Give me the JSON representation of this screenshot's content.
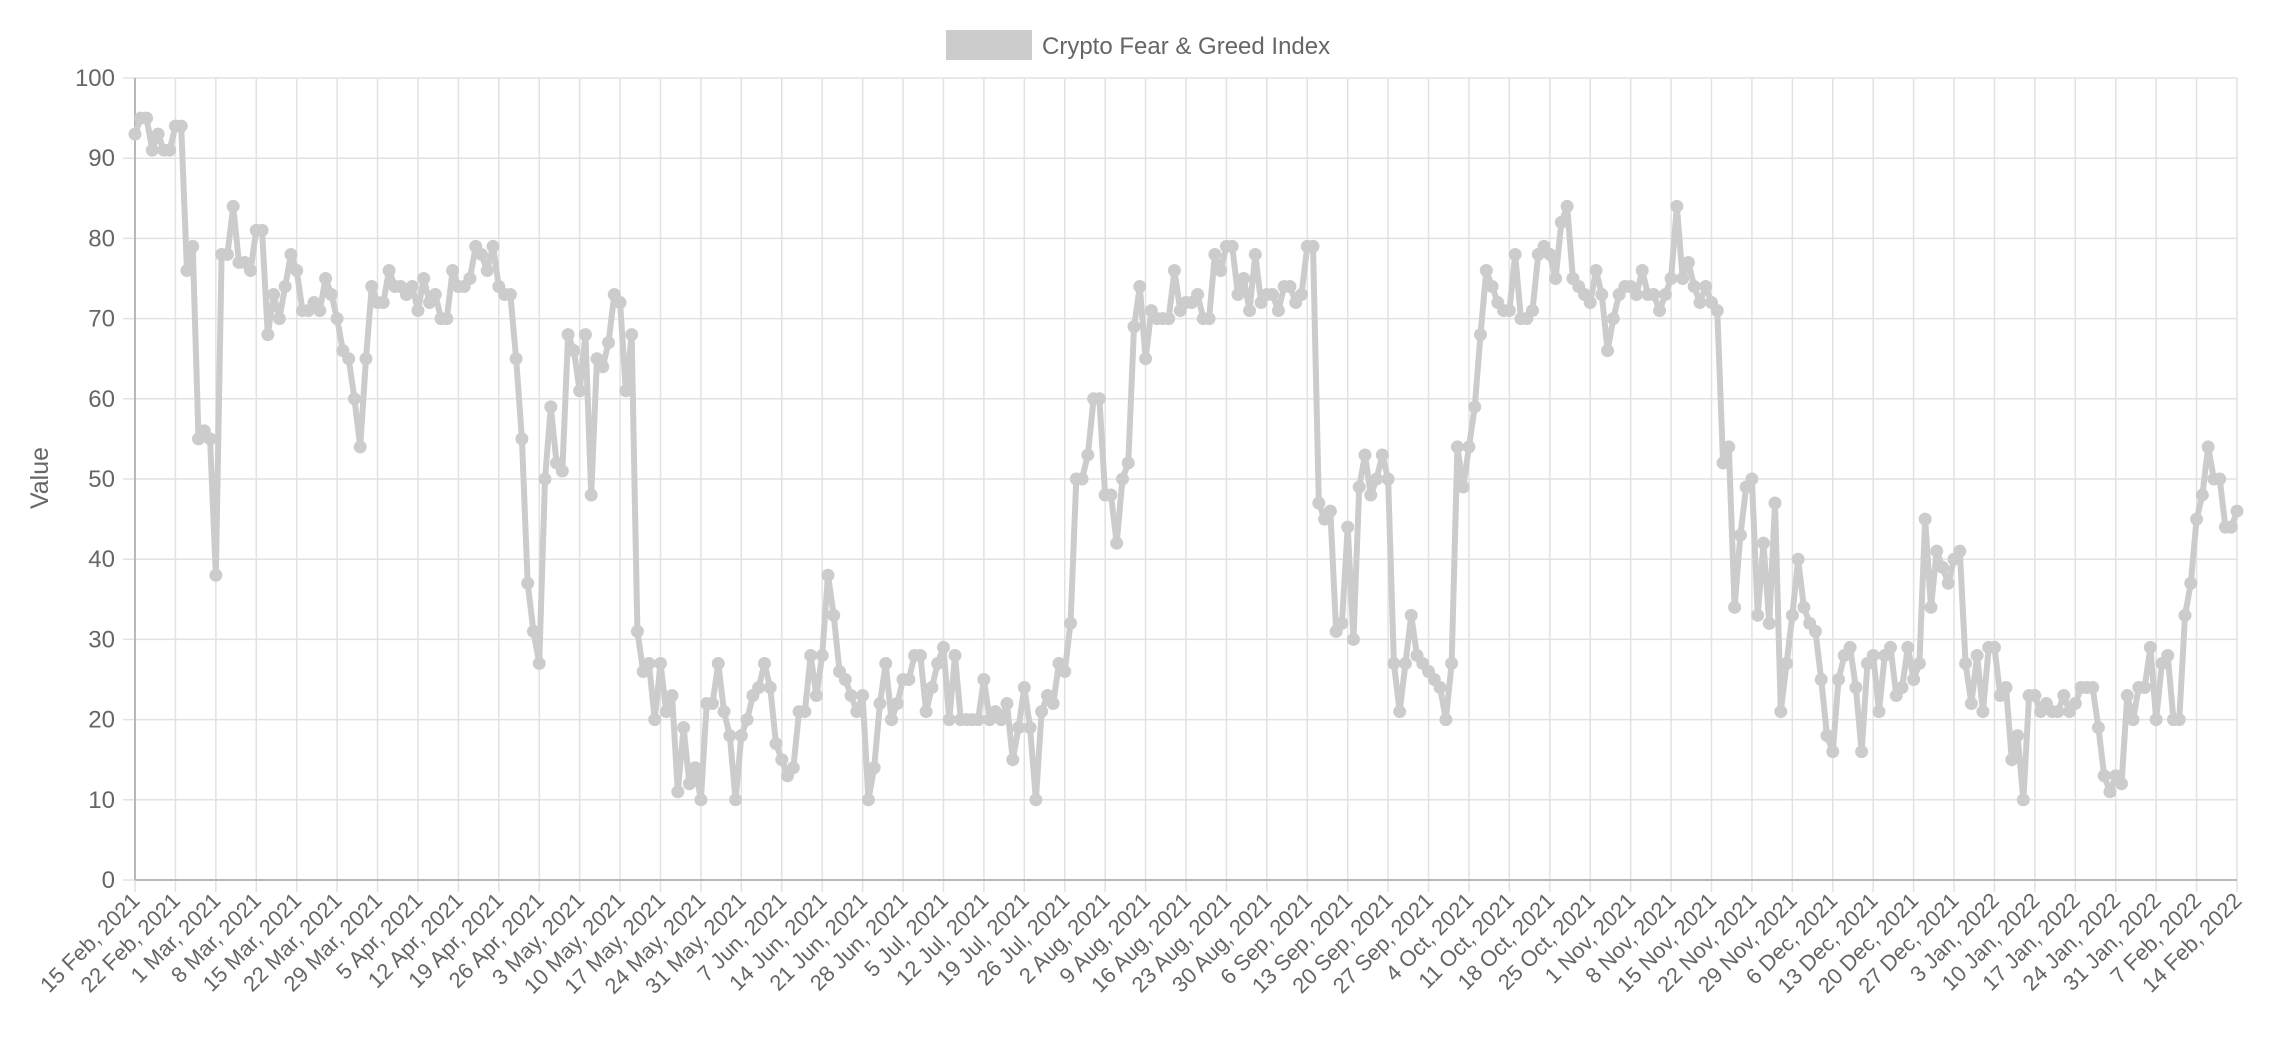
{
  "chart_data": {
    "type": "line",
    "title": "",
    "xlabel": "",
    "ylabel": "Value",
    "ylim": [
      0,
      100
    ],
    "yticks": [
      0,
      10,
      20,
      30,
      40,
      50,
      60,
      70,
      80,
      90,
      100
    ],
    "grid": true,
    "legend": {
      "position": "top-center",
      "entries": [
        "Crypto Fear & Greed Index"
      ]
    },
    "x_tick_labels": [
      "15 Feb, 2021",
      "22 Feb, 2021",
      "1 Mar, 2021",
      "8 Mar, 2021",
      "15 Mar, 2021",
      "22 Mar, 2021",
      "29 Mar, 2021",
      "5 Apr, 2021",
      "12 Apr, 2021",
      "19 Apr, 2021",
      "26 Apr, 2021",
      "3 May, 2021",
      "10 May, 2021",
      "17 May, 2021",
      "24 May, 2021",
      "31 May, 2021",
      "7 Jun, 2021",
      "14 Jun, 2021",
      "21 Jun, 2021",
      "28 Jun, 2021",
      "5 Jul, 2021",
      "12 Jul, 2021",
      "19 Jul, 2021",
      "26 Jul, 2021",
      "2 Aug, 2021",
      "9 Aug, 2021",
      "16 Aug, 2021",
      "23 Aug, 2021",
      "30 Aug, 2021",
      "6 Sep, 2021",
      "13 Sep, 2021",
      "20 Sep, 2021",
      "27 Sep, 2021",
      "4 Oct, 2021",
      "11 Oct, 2021",
      "18 Oct, 2021",
      "25 Oct, 2021",
      "1 Nov, 2021",
      "8 Nov, 2021",
      "15 Nov, 2021",
      "22 Nov, 2021",
      "29 Nov, 2021",
      "6 Dec, 2021",
      "13 Dec, 2021",
      "20 Dec, 2021",
      "27 Dec, 2021",
      "3 Jan, 2022",
      "10 Jan, 2022",
      "17 Jan, 2022",
      "24 Jan, 2022",
      "31 Jan, 2022",
      "7 Feb, 2022",
      "14 Feb, 2022"
    ],
    "series": [
      {
        "name": "Crypto Fear & Greed Index",
        "color": "#cccccc",
        "values": [
          93,
          95,
          95,
          91,
          93,
          91,
          91,
          94,
          94,
          76,
          79,
          55,
          56,
          55,
          38,
          78,
          78,
          84,
          77,
          77,
          76,
          81,
          81,
          68,
          73,
          70,
          74,
          78,
          76,
          71,
          71,
          72,
          71,
          75,
          73,
          70,
          66,
          65,
          60,
          54,
          65,
          74,
          72,
          72,
          76,
          74,
          74,
          73,
          74,
          71,
          75,
          72,
          73,
          70,
          70,
          76,
          74,
          74,
          75,
          79,
          78,
          76,
          79,
          74,
          73,
          73,
          65,
          55,
          37,
          31,
          27,
          50,
          59,
          52,
          51,
          68,
          66,
          61,
          68,
          48,
          65,
          64,
          67,
          73,
          72,
          61,
          68,
          31,
          26,
          27,
          20,
          27,
          21,
          23,
          11,
          19,
          12,
          14,
          10,
          22,
          22,
          27,
          21,
          18,
          10,
          18,
          20,
          23,
          24,
          27,
          24,
          17,
          15,
          13,
          14,
          21,
          21,
          28,
          23,
          28,
          38,
          33,
          26,
          25,
          23,
          21,
          23,
          10,
          14,
          22,
          27,
          20,
          22,
          25,
          25,
          28,
          28,
          21,
          24,
          27,
          29,
          20,
          28,
          20,
          20,
          20,
          20,
          25,
          20,
          21,
          20,
          22,
          15,
          19,
          24,
          19,
          10,
          21,
          23,
          22,
          27,
          26,
          32,
          50,
          50,
          53,
          60,
          60,
          48,
          48,
          42,
          50,
          52,
          69,
          74,
          65,
          71,
          70,
          70,
          70,
          76,
          71,
          72,
          72,
          73,
          70,
          70,
          78,
          76,
          79,
          79,
          73,
          75,
          71,
          78,
          72,
          73,
          73,
          71,
          74,
          74,
          72,
          73,
          79,
          79,
          47,
          45,
          46,
          31,
          32,
          44,
          30,
          49,
          53,
          48,
          50,
          53,
          50,
          27,
          21,
          27,
          33,
          28,
          27,
          26,
          25,
          24,
          20,
          27,
          54,
          49,
          54,
          59,
          68,
          76,
          74,
          72,
          71,
          71,
          78,
          70,
          70,
          71,
          78,
          79,
          78,
          75,
          82,
          84,
          75,
          74,
          73,
          72,
          76,
          73,
          66,
          70,
          73,
          74,
          74,
          73,
          76,
          73,
          73,
          71,
          73,
          75,
          84,
          75,
          77,
          74,
          72,
          74,
          72,
          71,
          52,
          54,
          34,
          43,
          49,
          50,
          33,
          42,
          32,
          47,
          21,
          27,
          33,
          40,
          34,
          32,
          31,
          25,
          18,
          16,
          25,
          28,
          29,
          24,
          16,
          27,
          28,
          21,
          28,
          29,
          23,
          24,
          29,
          25,
          27,
          45,
          34,
          41,
          39,
          37,
          40,
          41,
          27,
          22,
          28,
          21,
          29,
          29,
          23,
          24,
          15,
          18,
          10,
          23,
          23,
          21,
          22,
          21,
          21,
          23,
          21,
          22,
          24,
          24,
          24,
          19,
          13,
          11,
          13,
          12,
          23,
          20,
          24,
          24,
          29,
          20,
          27,
          28,
          20,
          20,
          33,
          37,
          45,
          48,
          54,
          50,
          50,
          44,
          44,
          46
        ]
      }
    ]
  }
}
